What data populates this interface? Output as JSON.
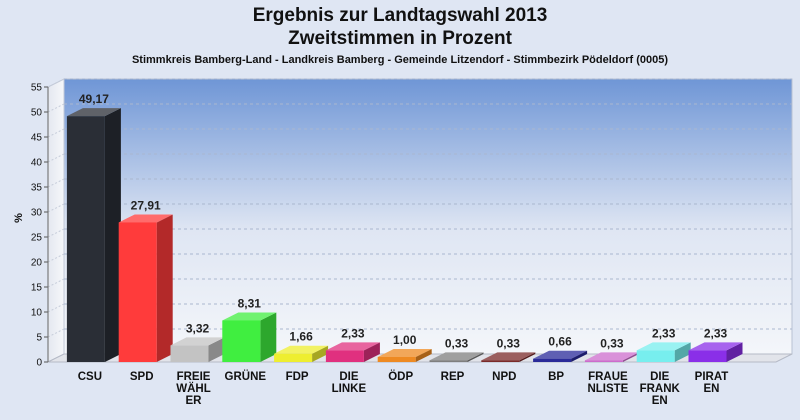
{
  "chart_data": {
    "type": "bar",
    "title": "Ergebnis zur Landtagswahl 2013",
    "title_line2": "Zweitstimmen in Prozent",
    "subtitle": "Stimmkreis Bamberg-Land - Landkreis Bamberg - Gemeinde Litzendorf - Stimmbezirk Pödeldorf (0005)",
    "xlabel": "",
    "ylabel": "%",
    "ylim": [
      0,
      55
    ],
    "yticks": [
      0,
      5,
      10,
      15,
      20,
      25,
      30,
      35,
      40,
      45,
      50,
      55
    ],
    "grid": true,
    "categories": [
      [
        "CSU"
      ],
      [
        "SPD"
      ],
      [
        "FREIE",
        "WÄHL",
        "ER"
      ],
      [
        "GRÜNE"
      ],
      [
        "FDP"
      ],
      [
        "DIE",
        "LINKE"
      ],
      [
        "ÖDP"
      ],
      [
        "REP"
      ],
      [
        "NPD"
      ],
      [
        "BP"
      ],
      [
        "FRAUE",
        "NLISTE"
      ],
      [
        "DIE",
        "FRANK",
        "EN"
      ],
      [
        "PIRAT",
        "EN"
      ]
    ],
    "values": [
      49.17,
      27.91,
      3.32,
      8.31,
      1.66,
      2.33,
      1.0,
      0.33,
      0.33,
      0.66,
      0.33,
      2.33,
      2.33
    ],
    "value_labels": [
      "49,17",
      "27,91",
      "3,32",
      "8,31",
      "1,66",
      "2,33",
      "1,00",
      "0,33",
      "0,33",
      "0,66",
      "0,33",
      "2,33",
      "2,33"
    ],
    "colors": [
      "#2a2e36",
      "#ff3b3b",
      "#c3c3c3",
      "#40ee40",
      "#eeee30",
      "#e0307f",
      "#ee8a22",
      "#7f7f7f",
      "#7a2a2a",
      "#2a2a99",
      "#cc6ccc",
      "#77eeee",
      "#8a2fe8"
    ]
  }
}
